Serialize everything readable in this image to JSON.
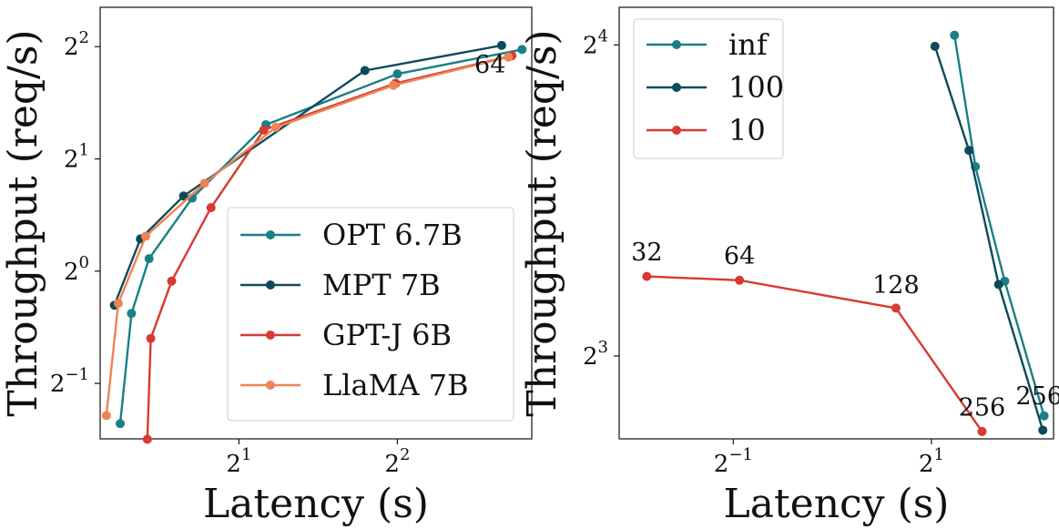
{
  "chart_data": [
    {
      "type": "line",
      "xlabel": "Latency (s)",
      "ylabel": "Throughput (req/s)",
      "xscale": "log2",
      "yscale": "log2",
      "xticks": [
        2,
        4
      ],
      "xtick_labels": [
        {
          "base": "2",
          "exp": "1"
        },
        {
          "base": "2",
          "exp": "2"
        }
      ],
      "yticks": [
        0.5,
        1,
        2,
        4
      ],
      "ytick_labels": [
        {
          "base": "2",
          "exp": "−1"
        },
        {
          "base": "2",
          "exp": "0"
        },
        {
          "base": "2",
          "exp": "1"
        },
        {
          "base": "2",
          "exp": "2"
        }
      ],
      "xlim": [
        1.09,
        7.2
      ],
      "ylim": [
        0.355,
        5.1
      ],
      "legend_position": "lower-right",
      "series": [
        {
          "name": "OPT 6.7B",
          "color": "#1a7f86",
          "points": [
            [
              1.19,
              0.39
            ],
            [
              1.25,
              0.77
            ],
            [
              1.35,
              1.08
            ],
            [
              1.63,
              1.57
            ],
            [
              2.25,
              2.47
            ],
            [
              4.0,
              3.38
            ],
            [
              6.9,
              3.93
            ]
          ]
        },
        {
          "name": "MPT 7B",
          "color": "#0e4a5c",
          "points": [
            [
              1.16,
              0.81
            ],
            [
              1.3,
              1.22
            ],
            [
              1.57,
              1.59
            ],
            [
              3.47,
              3.45
            ],
            [
              6.31,
              4.03
            ]
          ]
        },
        {
          "name": "GPT-J 6B",
          "color": "#d63a31",
          "points": [
            [
              1.34,
              0.354
            ],
            [
              1.36,
              0.66
            ],
            [
              1.49,
              0.94
            ],
            [
              1.77,
              1.48
            ],
            [
              2.23,
              2.39
            ],
            [
              3.97,
              3.19
            ],
            [
              6.6,
              3.78
            ]
          ]
        },
        {
          "name": "LlaMA 7B",
          "color": "#ee8455",
          "points": [
            [
              1.12,
              0.41
            ],
            [
              1.18,
              0.82
            ],
            [
              1.33,
              1.24
            ],
            [
              1.72,
              1.72
            ],
            [
              2.35,
              2.43
            ],
            [
              3.93,
              3.15
            ],
            [
              6.5,
              3.75
            ]
          ]
        }
      ],
      "annotations": [
        {
          "text": "64",
          "x": 6.0,
          "y": 3.4
        }
      ]
    },
    {
      "type": "line",
      "xlabel": "Latency (s)",
      "ylabel": "Throughput (req/s)",
      "xscale": "log2",
      "yscale": "log2",
      "xticks": [
        0.5,
        2
      ],
      "xtick_labels": [
        {
          "base": "2",
          "exp": "−1"
        },
        {
          "base": "2",
          "exp": "1"
        }
      ],
      "yticks": [
        8,
        16
      ],
      "ytick_labels": [
        {
          "base": "2",
          "exp": "3"
        },
        {
          "base": "2",
          "exp": "4"
        }
      ],
      "xlim": [
        0.225,
        4.7
      ],
      "ylim": [
        6.65,
        17.4
      ],
      "legend_position": "top-left",
      "series": [
        {
          "name": "inf",
          "color": "#1a7f86",
          "points": [
            [
              2.35,
              16.35
            ],
            [
              2.72,
              12.2
            ],
            [
              3.34,
              9.45
            ],
            [
              4.4,
              7.0
            ]
          ]
        },
        {
          "name": "100",
          "color": "#0e4a5c",
          "points": [
            [
              2.05,
              15.95
            ],
            [
              2.6,
              12.65
            ],
            [
              3.2,
              9.38
            ],
            [
              4.36,
              6.78
            ]
          ]
        },
        {
          "name": "10",
          "color": "#d63a31",
          "points": [
            [
              0.273,
              9.55
            ],
            [
              0.522,
              9.47
            ],
            [
              1.56,
              8.9
            ],
            [
              2.85,
              6.76
            ]
          ]
        }
      ],
      "annotations": [
        {
          "text": "32",
          "x": 0.273,
          "y": 9.9
        },
        {
          "text": "64",
          "x": 0.522,
          "y": 9.82
        },
        {
          "text": "128",
          "x": 1.56,
          "y": 9.2
        },
        {
          "text": "256",
          "x": 2.85,
          "y": 7.0
        },
        {
          "text": "256",
          "x": 4.25,
          "y": 7.18
        }
      ]
    }
  ]
}
